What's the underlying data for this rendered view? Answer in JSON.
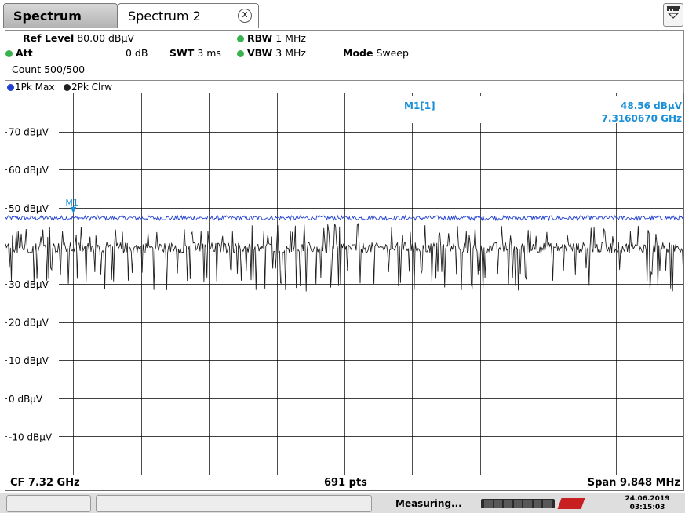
{
  "tabs": [
    {
      "label": "Spectrum"
    },
    {
      "label": "Spectrum 2"
    }
  ],
  "tab_close_glyph": "X",
  "menu_icon": "window-menu-icon",
  "settings": {
    "ref_level_label": "Ref Level",
    "ref_level_value": "80.00 dBµV",
    "att_label": "Att",
    "att_value": "0 dB",
    "swt_label": "SWT",
    "swt_value": "3 ms",
    "rbw_label": "RBW",
    "rbw_value": "1 MHz",
    "vbw_label": "VBW",
    "vbw_value": "3 MHz",
    "mode_label": "Mode",
    "mode_value": "Sweep",
    "count": "Count 500/500"
  },
  "traces": [
    {
      "label": "1Pk Max",
      "color": "#2040d0"
    },
    {
      "label": "2Pk Clrw",
      "color": "#202020"
    }
  ],
  "marker": {
    "name": "M1",
    "readout_name": "M1[1]",
    "level": "48.56 dBµV",
    "frequency": "7.3160670 GHz",
    "color": "#1a8fd8"
  },
  "chart_data": {
    "type": "line",
    "ylim": [
      -20,
      80
    ],
    "yticks": [
      {
        "value": 70,
        "label": "70 dBµV"
      },
      {
        "value": 60,
        "label": "60 dBµV"
      },
      {
        "value": 50,
        "label": "50 dBµV"
      },
      {
        "value": 30,
        "label": "30 dBµV"
      },
      {
        "value": 20,
        "label": "20 dBµV"
      },
      {
        "value": 10,
        "label": "10 dBµV"
      },
      {
        "value": 0,
        "label": "0 dBµV"
      },
      {
        "value": -10,
        "label": "-10 dBµV"
      }
    ],
    "x_divisions": 10,
    "grid": true,
    "series": [
      {
        "name": "1Pk Max",
        "color": "#2040d0",
        "mean_level": 47.3,
        "noise": 0.6
      },
      {
        "name": "2Pk Clrw",
        "color": "#202020",
        "mean_level": 39.5,
        "noise": 3.5
      }
    ],
    "marker_x_division": 1,
    "marker_level": 48.56
  },
  "bottom": {
    "cf": "CF 7.32 GHz",
    "points": "691 pts",
    "span": "Span 9.848 MHz"
  },
  "status": {
    "measuring": "Measuring...",
    "date": "24.06.2019",
    "time": "03:15:03"
  }
}
